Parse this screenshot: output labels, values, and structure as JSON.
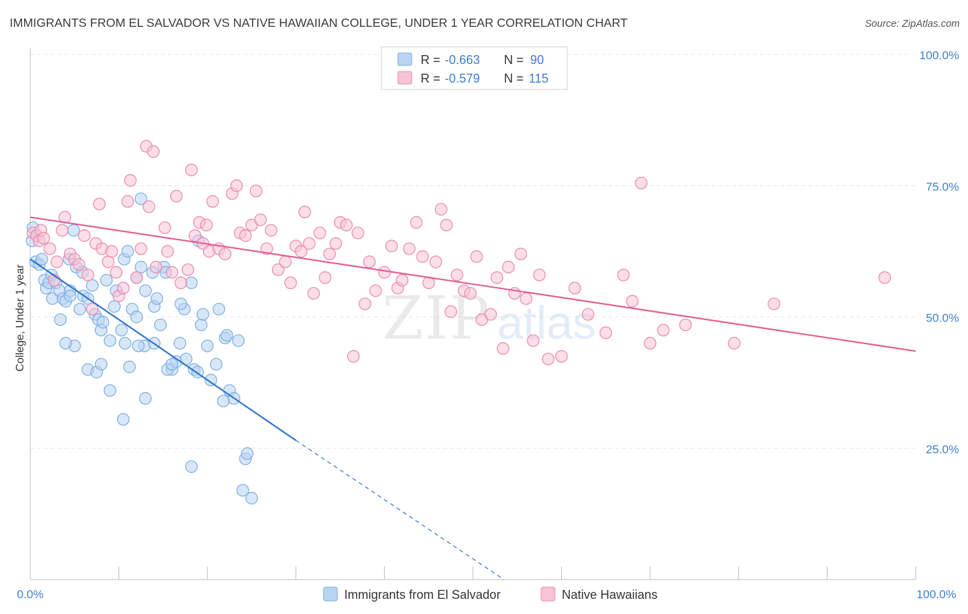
{
  "chart_data": {
    "type": "scatter",
    "title": "IMMIGRANTS FROM EL SALVADOR VS NATIVE HAWAIIAN COLLEGE, UNDER 1 YEAR CORRELATION CHART",
    "source": "Source: ZipAtlas.com",
    "ylabel": "College, Under 1 year",
    "xlabel": "",
    "xlim": [
      0,
      100
    ],
    "ylim": [
      0,
      100
    ],
    "x_tick_labels": [
      "0.0%",
      "100.0%"
    ],
    "y_tick_labels": [
      "100.0%",
      "75.0%",
      "50.0%",
      "25.0%"
    ],
    "y_tick_values": [
      100,
      75,
      50,
      25
    ],
    "grid": "horizontal dashed",
    "legend_position": "bottom-center",
    "watermark": "ZIPatlas",
    "stats": [
      {
        "r_label": "R =",
        "r_value": "-0.663",
        "n_label": "N =",
        "n_value": "90"
      },
      {
        "r_label": "R =",
        "r_value": "-0.579",
        "n_label": "N =",
        "n_value": "115"
      }
    ],
    "series": [
      {
        "name": "Immigrants from El Salvador",
        "color": "#7aaee0",
        "fill": "#b8d4f2",
        "line_color": "#2f74c9",
        "trend": {
          "x0": 0,
          "y0": 61.0,
          "x1": 30,
          "y1": 26.5,
          "dash_to_x": 53.5,
          "dash_to_y": 0
        },
        "points": [
          [
            0.2,
            64.5
          ],
          [
            0.3,
            67.0
          ],
          [
            0.6,
            60.5
          ],
          [
            1.0,
            60.0
          ],
          [
            1.3,
            61.0
          ],
          [
            1.6,
            57.0
          ],
          [
            1.8,
            55.5
          ],
          [
            2.1,
            56.5
          ],
          [
            2.4,
            58.0
          ],
          [
            2.5,
            53.5
          ],
          [
            2.9,
            56.5
          ],
          [
            3.3,
            55.0
          ],
          [
            3.4,
            49.5
          ],
          [
            3.7,
            53.5
          ],
          [
            4.0,
            53.0
          ],
          [
            4.4,
            61.0
          ],
          [
            4.5,
            55.0
          ],
          [
            5.2,
            59.5
          ],
          [
            4.9,
            66.5
          ],
          [
            4.5,
            54.0
          ],
          [
            5.0,
            44.5
          ],
          [
            5.6,
            51.5
          ],
          [
            5.9,
            58.5
          ],
          [
            6.0,
            54.0
          ],
          [
            6.5,
            53.5
          ],
          [
            7.0,
            56.0
          ],
          [
            7.3,
            50.5
          ],
          [
            7.7,
            49.5
          ],
          [
            8.0,
            47.5
          ],
          [
            8.2,
            49.0
          ],
          [
            8.6,
            57.0
          ],
          [
            9.0,
            45.5
          ],
          [
            9.5,
            52.0
          ],
          [
            9.7,
            55.0
          ],
          [
            10.3,
            47.5
          ],
          [
            10.6,
            61.0
          ],
          [
            10.7,
            45.0
          ],
          [
            11.0,
            62.5
          ],
          [
            11.5,
            51.5
          ],
          [
            12.0,
            57.5
          ],
          [
            12.0,
            50.0
          ],
          [
            12.5,
            59.5
          ],
          [
            12.9,
            44.5
          ],
          [
            13.0,
            55.0
          ],
          [
            13.8,
            58.5
          ],
          [
            14.0,
            52.0
          ],
          [
            14.0,
            45.0
          ],
          [
            14.3,
            53.5
          ],
          [
            14.7,
            48.5
          ],
          [
            15.1,
            59.5
          ],
          [
            15.3,
            58.5
          ],
          [
            16.0,
            40.0
          ],
          [
            16.5,
            41.5
          ],
          [
            16.9,
            45.0
          ],
          [
            17.4,
            51.5
          ],
          [
            17.6,
            42.0
          ],
          [
            18.2,
            56.5
          ],
          [
            18.5,
            40.0
          ],
          [
            18.9,
            39.5
          ],
          [
            19.3,
            48.5
          ],
          [
            19.0,
            64.5
          ],
          [
            20.0,
            44.5
          ],
          [
            20.4,
            38.0
          ],
          [
            21.0,
            41.0
          ],
          [
            21.3,
            51.5
          ],
          [
            21.8,
            34.0
          ],
          [
            22.0,
            46.0
          ],
          [
            22.5,
            36.0
          ],
          [
            23.0,
            34.5
          ],
          [
            23.5,
            45.5
          ],
          [
            24.0,
            17.0
          ],
          [
            24.3,
            23.0
          ],
          [
            24.5,
            24.0
          ],
          [
            25.0,
            15.5
          ],
          [
            6.5,
            40.0
          ],
          [
            7.5,
            39.5
          ],
          [
            8.0,
            41.0
          ],
          [
            9.0,
            36.0
          ],
          [
            10.5,
            30.5
          ],
          [
            11.2,
            40.5
          ],
          [
            12.2,
            44.5
          ],
          [
            13.0,
            34.5
          ],
          [
            15.5,
            40.0
          ],
          [
            16.0,
            41.0
          ],
          [
            17.0,
            52.5
          ],
          [
            18.2,
            21.5
          ],
          [
            19.5,
            50.5
          ],
          [
            22.2,
            46.5
          ],
          [
            12.5,
            72.5
          ],
          [
            4.0,
            45.0
          ]
        ]
      },
      {
        "name": "Native Hawaiians",
        "color": "#e888ad",
        "fill": "#f7c3d6",
        "line_color": "#e06092",
        "trend": {
          "x0": 0,
          "y0": 69.0,
          "x1": 100,
          "y1": 43.5
        },
        "points": [
          [
            0.3,
            66.0
          ],
          [
            0.7,
            65.5
          ],
          [
            1.0,
            64.5
          ],
          [
            1.2,
            66.5
          ],
          [
            1.5,
            65.0
          ],
          [
            2.2,
            63.0
          ],
          [
            2.7,
            57.0
          ],
          [
            3.0,
            60.5
          ],
          [
            3.6,
            66.5
          ],
          [
            3.9,
            69.0
          ],
          [
            4.5,
            62.0
          ],
          [
            5.0,
            61.0
          ],
          [
            5.5,
            60.0
          ],
          [
            6.1,
            65.5
          ],
          [
            6.5,
            58.0
          ],
          [
            7.0,
            51.5
          ],
          [
            7.4,
            64.0
          ],
          [
            7.8,
            71.5
          ],
          [
            8.1,
            63.0
          ],
          [
            8.8,
            60.5
          ],
          [
            9.2,
            62.5
          ],
          [
            9.7,
            58.5
          ],
          [
            10.0,
            54.0
          ],
          [
            10.5,
            55.5
          ],
          [
            11.0,
            72.0
          ],
          [
            11.3,
            76.0
          ],
          [
            12.0,
            57.5
          ],
          [
            12.5,
            63.0
          ],
          [
            13.1,
            82.5
          ],
          [
            13.4,
            71.0
          ],
          [
            13.9,
            81.5
          ],
          [
            14.2,
            59.5
          ],
          [
            15.2,
            67.0
          ],
          [
            15.5,
            62.5
          ],
          [
            16.0,
            58.5
          ],
          [
            16.5,
            73.0
          ],
          [
            17.0,
            56.5
          ],
          [
            17.8,
            59.0
          ],
          [
            18.2,
            78.0
          ],
          [
            18.6,
            65.5
          ],
          [
            19.1,
            68.0
          ],
          [
            19.5,
            64.0
          ],
          [
            19.9,
            67.5
          ],
          [
            20.2,
            62.5
          ],
          [
            20.6,
            72.0
          ],
          [
            21.3,
            63.0
          ],
          [
            22.0,
            62.0
          ],
          [
            22.8,
            73.5
          ],
          [
            23.3,
            75.0
          ],
          [
            23.7,
            66.0
          ],
          [
            24.3,
            65.5
          ],
          [
            25.0,
            67.5
          ],
          [
            25.5,
            74.0
          ],
          [
            26.0,
            68.5
          ],
          [
            26.7,
            63.0
          ],
          [
            27.2,
            66.5
          ],
          [
            28.0,
            59.0
          ],
          [
            28.8,
            60.5
          ],
          [
            29.4,
            56.5
          ],
          [
            30.0,
            63.5
          ],
          [
            30.6,
            62.5
          ],
          [
            31.0,
            70.0
          ],
          [
            31.5,
            64.0
          ],
          [
            32.0,
            54.5
          ],
          [
            32.7,
            66.0
          ],
          [
            33.3,
            57.5
          ],
          [
            33.8,
            62.0
          ],
          [
            34.5,
            64.0
          ],
          [
            35.0,
            68.0
          ],
          [
            35.7,
            67.5
          ],
          [
            36.5,
            42.5
          ],
          [
            37.0,
            66.0
          ],
          [
            37.8,
            52.5
          ],
          [
            38.3,
            60.5
          ],
          [
            39.0,
            55.0
          ],
          [
            40.0,
            58.5
          ],
          [
            40.8,
            63.5
          ],
          [
            41.5,
            55.5
          ],
          [
            42.0,
            57.0
          ],
          [
            42.8,
            63.0
          ],
          [
            43.6,
            68.0
          ],
          [
            44.3,
            61.5
          ],
          [
            45.0,
            56.5
          ],
          [
            45.8,
            60.5
          ],
          [
            46.4,
            70.5
          ],
          [
            47.0,
            67.5
          ],
          [
            47.5,
            51.0
          ],
          [
            48.2,
            58.0
          ],
          [
            49.0,
            55.0
          ],
          [
            49.7,
            54.5
          ],
          [
            50.4,
            61.5
          ],
          [
            51.0,
            49.5
          ],
          [
            52.0,
            50.5
          ],
          [
            52.7,
            57.5
          ],
          [
            53.4,
            44.0
          ],
          [
            54.0,
            59.5
          ],
          [
            54.7,
            54.5
          ],
          [
            55.4,
            62.0
          ],
          [
            56.0,
            53.5
          ],
          [
            56.8,
            45.5
          ],
          [
            57.5,
            58.0
          ],
          [
            58.5,
            42.0
          ],
          [
            60.0,
            42.5
          ],
          [
            61.5,
            55.5
          ],
          [
            63.0,
            50.5
          ],
          [
            65.0,
            47.0
          ],
          [
            67.0,
            58.0
          ],
          [
            68.0,
            53.0
          ],
          [
            69.0,
            75.5
          ],
          [
            70.0,
            45.0
          ],
          [
            71.5,
            47.5
          ],
          [
            74.0,
            48.5
          ],
          [
            79.5,
            45.0
          ],
          [
            84.0,
            52.5
          ],
          [
            96.5,
            57.5
          ]
        ]
      }
    ]
  }
}
